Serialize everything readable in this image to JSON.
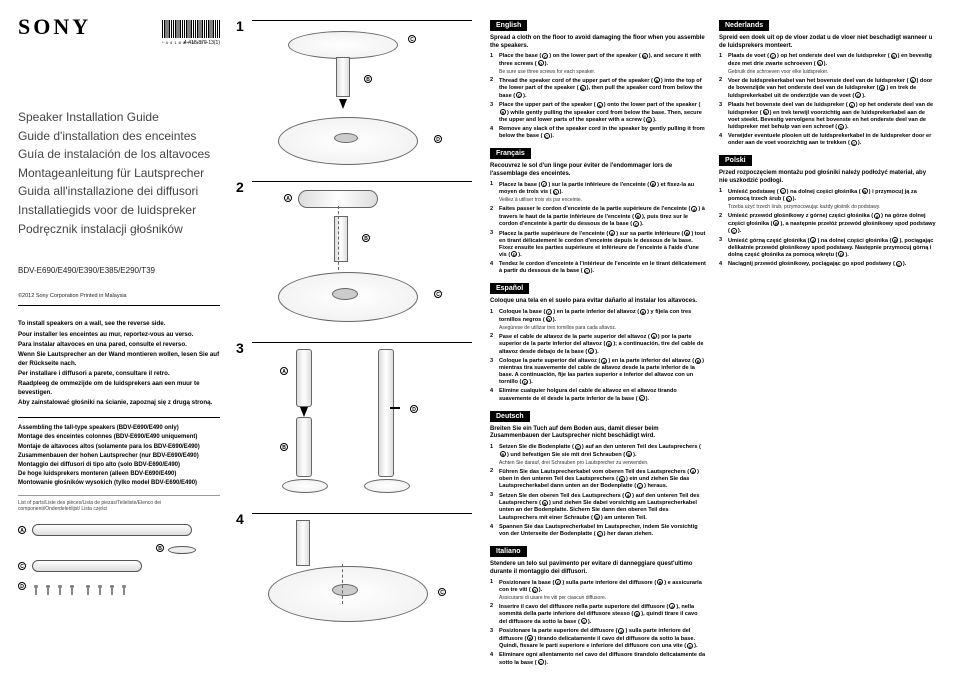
{
  "docnum": "4-418-870-13(1)",
  "logo": "SONY",
  "titles": [
    "Speaker Installation Guide",
    "Guide d'installation des enceintes",
    "Guía de instalación de los altavoces",
    "Montageanleitung für Lautsprecher",
    "Guida all'installazione dei diffusori",
    "Installatiegids voor de luidspreker",
    "Podręcznik instalacji głośników"
  ],
  "models": "BDV-E690/E490/E390/E385/E290/T39",
  "copyright": "©2012 Sony Corporation   Printed in Malaysia",
  "reverse": [
    "To install speakers on a wall, see the reverse side.",
    "Pour installer les enceintes au mur, reportez-vous au verso.",
    "Para instalar altavoces en una pared, consulte el reverso.",
    "Wenn Sie Lautsprecher an der Wand montieren wollen, lesen Sie auf der Rückseite nach.",
    "Per installare i diffusori a parete, consultare il retro.",
    "Raadpleeg de ommezijde om de luidsprekers aan een muur te bevestigen.",
    "Aby zainstalować głośniki na ścianie, zapoznaj się z drugą stroną."
  ],
  "assembling": [
    "Assembling the tall-type speakers (BDV-E690/E490 only)",
    "Montage des enceintes colonnes (BDV-E690/E490 uniquement)",
    "Montaje de altavoces altos (solamente para los BDV-E690/E490)",
    "Zusammenbauen der hohen Lautsprecher (nur BDV-E690/E490)",
    "Montaggio dei diffusori di tipo alto (solo BDV-E690/E490)",
    "De hoge luidsprekers monteren (alleen BDV-E690/E490)",
    "Montowanie głośników wysokich (tylko model BDV-E690/E490)"
  ],
  "partslist": "List of parts/Liste des pièces/Lista de piezas/Teileliste/Elenco dei componenti/Onderdelenlijst/ Lista części",
  "partlabels": {
    "a": "A",
    "b": "B",
    "c": "C",
    "d": "D"
  },
  "steps": {
    "s1": "1",
    "s2": "2",
    "s3": "3",
    "s4": "4"
  },
  "marks": {
    "a": "A",
    "b": "B",
    "c": "C",
    "d": "D"
  },
  "langs": {
    "en": {
      "name": "English",
      "lead": "Spread a cloth on the floor to avoid damaging the floor when you assemble the speakers.",
      "steps": [
        {
          "main": "Place the base (C) on the lower part of the speaker (B), and secure it with three screws (D).",
          "sub": "Be sure use three screws for each speaker."
        },
        {
          "main": "Thread the speaker cord of the upper part of the speaker (A) into the top of the lower part of the speaker (B), then pull the speaker cord from below the base (C)."
        },
        {
          "main": "Place the upper part of the speaker (A) onto the lower part of the speaker (B) while gently pulling the speaker cord from below the base. Then, secure the upper and lower parts of the speaker with a screw (D)."
        },
        {
          "main": "Remove any slack of the speaker cord in the speaker by gently pulling it from below the base (C)."
        }
      ]
    },
    "fr": {
      "name": "Français",
      "lead": "Recouvrez le sol d'un linge pour éviter de l'endommager lors de l'assemblage des enceintes.",
      "steps": [
        {
          "main": "Placez la base (C) sur la partie inférieure de l'enceinte (B) et fixez-la au moyen de trois vis (D).",
          "sub": "Veillez à utiliser trois vis par enceinte."
        },
        {
          "main": "Faites passer le cordon d'enceinte de la partie supérieure de l'enceinte (A) à travers le haut de la partie inférieure de l'enceinte (B), puis tirez sur le cordon d'enceinte à partir du dessous de la base (C)."
        },
        {
          "main": "Placez la partie supérieure de l'enceinte (A) sur sa partie inférieure (B) tout en tirant délicatement le cordon d'enceinte depuis le dessous de la base. Fixez ensuite les parties supérieure et inférieure de l'enceinte à l'aide d'une vis (D)."
        },
        {
          "main": "Tendez le cordon d'enceinte à l'intérieur de l'enceinte en le tirant délicatement à partir du dessous de la base (C)."
        }
      ]
    },
    "es": {
      "name": "Español",
      "lead": "Coloque una tela en el suelo para evitar dañarlo al instalar los altavoces.",
      "steps": [
        {
          "main": "Coloque la base (C) en la parte inferior del altavoz (B) y fíjela con tres tornillos negros (D).",
          "sub": "Asegúrese de utilizar tres tornillos para cada altavoz."
        },
        {
          "main": "Pase el cable de altavoz de la parte superior del altavoz (A) por la parte superior de la parte inferior del altavoz (B); a continuación, tire del cable de altavoz desde debajo de la base (C)."
        },
        {
          "main": "Coloque la parte superior del altavoz (A) en la parte inferior del altavoz (B) mientras tira suavemente del cable de altavoz desde la parte inferior de la base. A continuación, fije las partes superior e inferior del altavoz con un tornillo (D)."
        },
        {
          "main": "Elimine cualquier holgura del cable de altavoz en el altavoz tirando suavemente de él desde la parte inferior de la base (C)."
        }
      ]
    },
    "de": {
      "name": "Deutsch",
      "lead": "Breiten Sie ein Tuch auf dem Boden aus, damit dieser beim Zusammenbauen der Lautsprecher nicht beschädigt wird.",
      "steps": [
        {
          "main": "Setzen Sie die Bodenplatte (C) auf an den unteren Teil des Lautsprechers (B) und befestigen Sie sie mit drei Schrauben (D).",
          "sub": "Achten Sie darauf, drei Schrauben pro Lautsprecher zu verwenden."
        },
        {
          "main": "Führen Sie das Lautsprecherkabel vom oberen Teil des Lautsprechers (A) oben in den unteren Teil des Lautsprechers (B) ein und ziehen Sie das Lautsprecherkabel dann unten an der Bodenplatte (C) heraus."
        },
        {
          "main": "Setzen Sie den oberen Teil des Lautsprechers (A) auf den unteren Teil des Lautsprechers (B) und ziehen Sie dabei vorsichtig am Lautsprecherkabel unten an der Bodenplatte. Sichern Sie dann den oberen Teil des Lautsprechers mit einer Schraube (D) am unteren Teil."
        },
        {
          "main": "Spannen Sie das Lautsprecherkabel im Lautsprecher, indem Sie vorsichtig von der Unterseite der Bodenplatte (C) her daran ziehen."
        }
      ]
    },
    "it": {
      "name": "Italiano",
      "lead": "Stendere un telo sul pavimento per evitare di danneggiare quest'ultimo durante il montaggio dei diffusori.",
      "steps": [
        {
          "main": "Posizionare la base (C) sulla parte inferiore del diffusore (B) e assicurarla con tre viti (D).",
          "sub": "Assicurarsi di usare tre viti per ciascun diffusore."
        },
        {
          "main": "Inserire il cavo del diffusore nella parte superiore del diffusore (A), nella sommità della parte inferiore del diffusore stesso (B), quindi tirare il cavo del diffusore da sotto la base (C)."
        },
        {
          "main": "Posizionare la parte superiore del diffusore (A) sulla parte inferiore del diffusore (B) tirando delicatamente il cavo del diffusore da sotto la base. Quindi, fissare le parti superiore e inferiore del diffusore con una vite (D)."
        },
        {
          "main": "Eliminare ogni allentamento nel cavo del diffusore tirandolo delicatamente da sotto la base (C)."
        }
      ]
    },
    "nl": {
      "name": "Nederlands",
      "lead": "Spreid een doek uit op de vloer zodat u de vloer niet beschadigt wanneer u de luidsprekers monteert.",
      "steps": [
        {
          "main": "Plaats de voet (C) op het onderste deel van de luidspreker (B) en bevestig deze met drie zwarte schroeven (D).",
          "sub": "Gebruik drie schroeven voor elke luidspreker."
        },
        {
          "main": "Voer de luidsprekerkabel van het bovenste deel van de luidspreker (A) door de bovenzijde van het onderste deel van de luidspreker (B) en trek de luidsprekerkabel uit de onderzijde van de voet (C)."
        },
        {
          "main": "Plaats het bovenste deel van de luidspreker (A) op het onderste deel van de luidspreker (B) en trek terwijl voorzichtig aan de luidsprekerkabel aan de voet steekt. Bevestig vervolgens het bovenste en het onderste deel van de luidspreker met behulp van een schroef (D)."
        },
        {
          "main": "Verwijder eventuele plooien uit de luidsprekerkabel in de luidspreker door er onder aan de voet voorzichtig aan te trekken (C)."
        }
      ]
    },
    "pl": {
      "name": "Polski",
      "lead": "Przed rozpoczęciem montażu pod głośniki należy podłożyć materiał, aby nie uszkodzić podłogi.",
      "steps": [
        {
          "main": "Umieść podstawę (C) na dolnej części głośnika (B) i przymocuj ją za pomocą trzech śrub (D).",
          "sub": "Trzeba użyć trzech śrub, przymocowując każdy głośnik do podstawy."
        },
        {
          "main": "Umieść przewód głośnikowy z górnej części głośnika (A) na górze dolnej części głośnika (B), a następnie przełóż przewód głośnikowy spod podstawy (C)."
        },
        {
          "main": "Umieść górną część głośnika (A) na dolnej części głośnika (B), pociągając delikatnie przewód głośnikowy spod podstawy. Następnie przymocuj górną i dolną część głośnika za pomocą wkrętu (D)."
        },
        {
          "main": "Naciągnij przewód głośnikowy, pociągając go spod podstawy (C)."
        }
      ]
    }
  }
}
